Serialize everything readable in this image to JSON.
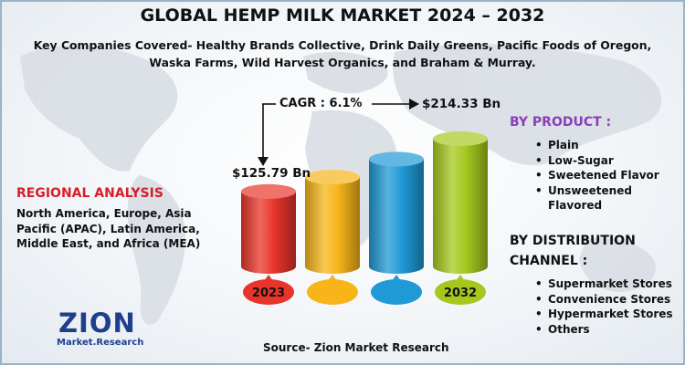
{
  "title": "GLOBAL HEMP MILK MARKET 2024 – 2032",
  "subtitle": "Key Companies Covered- Healthy Brands Collective, Drink Daily Greens, Pacific Foods of Oregon, Waska Farms, Wild Harvest Organics, and Braham & Murray.",
  "chart_data": {
    "type": "bar",
    "style": "3d-cylinder",
    "categories": [
      "2023",
      "",
      "",
      "2032"
    ],
    "values": [
      125.79,
      150.0,
      180.0,
      214.33
    ],
    "value_labels": [
      "$125.79 Bn",
      "",
      "",
      "$214.33 Bn"
    ],
    "cagr_label": "CAGR : 6.1%",
    "bar_colors": [
      "#e8352b",
      "#f7b519",
      "#1f9ad6",
      "#a6c81e"
    ],
    "grid": false
  },
  "regional": {
    "title": "REGIONAL ANALYSIS",
    "text": "North America, Europe, Asia Pacific (APAC), Latin America, Middle East, and Africa (MEA)"
  },
  "by_product": {
    "title": "BY PRODUCT :",
    "items": [
      "Plain",
      "Low-Sugar",
      "Sweetened Flavor",
      "Unsweetened Flavored"
    ]
  },
  "by_channel": {
    "title": "BY DISTRIBUTION CHANNEL :",
    "items": [
      "Supermarket Stores",
      "Convenience Stores",
      "Hypermarket Stores",
      "Others"
    ]
  },
  "source": "Source- Zion Market Research",
  "logo": {
    "main": "ZION",
    "sub": "Market.Research"
  },
  "colors": {
    "region_title": "#d7202a",
    "product_title": "#8a3fb8",
    "logo": "#1f3f8c"
  }
}
